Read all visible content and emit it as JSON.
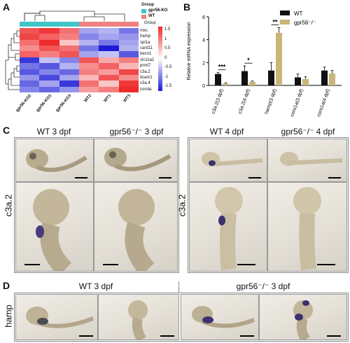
{
  "panels": {
    "A": {
      "label": "A",
      "legend": {
        "title": "Group",
        "items": [
          {
            "name": "gpr56-KO",
            "color": "#40c6c8"
          },
          {
            "name": "WT",
            "color": "#f08080"
          }
        ]
      },
      "rows": [
        "mxc",
        "hamp",
        "spi1a",
        "card11",
        "becn1",
        "slc11a2",
        "prmt7",
        "c3a.2",
        "ticam1",
        "c3a.4",
        "corola"
      ],
      "columns": [
        "gpr56-KO2",
        "gpr56-KO1",
        "gpr56-KO3",
        "WT2",
        "WT1",
        "WT3"
      ],
      "scale_title": "Group",
      "scale_ticks": [
        "1.5",
        "1",
        "0.5",
        "0",
        "-0.5",
        "-1",
        "-1.5"
      ]
    },
    "B": {
      "label": "B",
      "legend": [
        {
          "name": "WT",
          "color": "#111111"
        },
        {
          "name": "gpr56⁻/⁻",
          "color": "#c9b57a"
        }
      ]
    },
    "C": {
      "label": "C",
      "row_label_left": "c3a.2",
      "row_label_right": "c3a.2",
      "headers": [
        "WT   3 dpf",
        "gpr56⁻/⁻  3 dpf",
        "WT   4 dpf",
        "gpr56⁻/⁻  4 dpf"
      ]
    },
    "D": {
      "label": "D",
      "row_label": "hamp",
      "headers": [
        "WT   3 dpf",
        "gpr56⁻/⁻   3 dpf"
      ]
    }
  },
  "heatmap": [
    [
      1.2,
      1.4,
      1.0,
      -0.6,
      -0.5,
      -0.9
    ],
    [
      1.3,
      1.1,
      0.9,
      -0.8,
      -0.6,
      -0.7
    ],
    [
      1.0,
      1.5,
      0.4,
      -0.5,
      -0.9,
      -0.6
    ],
    [
      0.8,
      1.2,
      1.0,
      -0.9,
      -1.5,
      -0.5
    ],
    [
      1.1,
      0.9,
      1.2,
      -0.6,
      -0.4,
      -1.1
    ],
    [
      -1.3,
      -0.4,
      -0.8,
      1.2,
      0.6,
      0.9
    ],
    [
      -0.9,
      -1.1,
      -0.5,
      0.8,
      1.1,
      0.5
    ],
    [
      -1.1,
      -0.8,
      -1.0,
      0.9,
      0.7,
      1.3
    ],
    [
      -0.7,
      -1.2,
      -0.6,
      0.5,
      1.2,
      0.8
    ],
    [
      -1.0,
      -0.6,
      -1.3,
      1.0,
      0.4,
      1.4
    ],
    [
      -0.8,
      -1.0,
      -0.7,
      0.7,
      0.9,
      1.5
    ]
  ],
  "chart_data": {
    "type": "bar",
    "categories": [
      "c3a.2(3 dpf)",
      "c3a.2(4 dpf)",
      "hamp(3 dpf)",
      "coro1a(3 dpf)",
      "coro1a(4 dpf)"
    ],
    "series": [
      {
        "name": "WT",
        "values": [
          1.0,
          1.25,
          1.3,
          0.7,
          1.3
        ],
        "errors": [
          0.12,
          0.45,
          0.7,
          0.3,
          0.3
        ]
      },
      {
        "name": "gpr56⁻/⁻",
        "values": [
          0.15,
          0.3,
          4.6,
          0.55,
          1.05
        ],
        "errors": [
          0.06,
          0.08,
          0.45,
          0.2,
          0.25
        ]
      }
    ],
    "ylabel": "Relative mRNA expression",
    "ylim": [
      0,
      6
    ],
    "yticks": [
      0,
      2,
      4,
      6
    ],
    "significance": [
      "***",
      "*",
      "**",
      "",
      ""
    ],
    "legend_position": "top-right"
  }
}
